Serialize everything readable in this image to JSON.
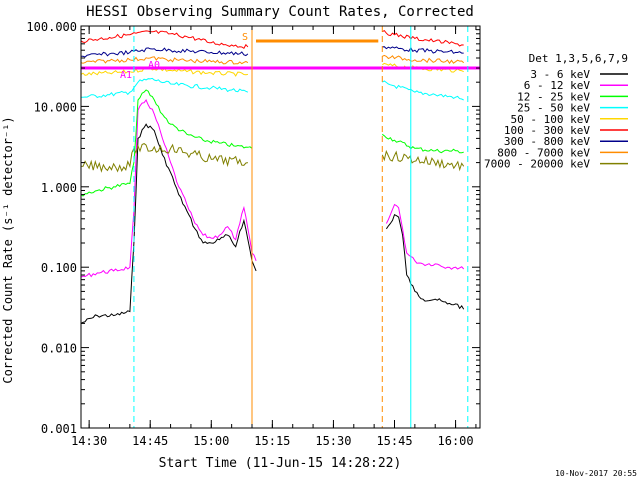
{
  "chart_data": {
    "type": "line",
    "title": "HESSI Observing Summary Count Rates, Corrected",
    "xlabel": "Start Time (11-Jun-15 14:28:22)",
    "ylabel": "Corrected Count Rate (s⁻¹ detector⁻¹)",
    "footer": "10-Nov-2017 20:55",
    "legend_title": "Det 1,3,5,6,7,9",
    "legend_position": "right",
    "y_scale": "log",
    "ylim": [
      0.001,
      100
    ],
    "xlim": [
      "14:28",
      "16:06"
    ],
    "x_ticks": [
      "14:30",
      "14:45",
      "15:00",
      "15:15",
      "15:30",
      "15:45",
      "16:00"
    ],
    "y_ticks": [
      "0.001",
      "0.010",
      "0.100",
      "1.000",
      "10.000",
      "100.000"
    ],
    "series": [
      {
        "name": "3 - 6 keV",
        "color": "#000000",
        "x": [
          "14:28",
          "14:32",
          "14:36",
          "14:40",
          "14:41",
          "14:42",
          "14:44",
          "14:46",
          "14:48",
          "14:50",
          "14:52",
          "14:54",
          "14:56",
          "14:58",
          "15:00",
          "15:02",
          "15:04",
          "15:06",
          "15:07",
          "15:08",
          "15:09",
          "15:10",
          "15:11",
          null,
          "15:43",
          "15:44",
          "15:45",
          "15:46",
          "15:47",
          "15:48",
          "15:50",
          "15:52",
          "15:55",
          "15:58",
          "16:00",
          "16:02"
        ],
        "y": [
          0.02,
          0.025,
          0.025,
          0.028,
          0.2,
          4,
          6,
          5,
          2.5,
          1.5,
          0.8,
          0.5,
          0.3,
          0.2,
          0.2,
          0.22,
          0.25,
          0.18,
          0.28,
          0.38,
          0.22,
          0.12,
          0.09,
          null,
          0.3,
          0.35,
          0.45,
          0.42,
          0.25,
          0.08,
          0.05,
          0.04,
          0.04,
          0.035,
          0.035,
          0.03
        ]
      },
      {
        "name": "6 - 12 keV",
        "color": "#ff00ff",
        "x": [
          "14:28",
          "14:32",
          "14:36",
          "14:40",
          "14:41",
          "14:42",
          "14:44",
          "14:46",
          "14:48",
          "14:50",
          "14:52",
          "14:54",
          "14:56",
          "14:58",
          "15:00",
          "15:02",
          "15:04",
          "15:06",
          "15:07",
          "15:08",
          "15:09",
          "15:10",
          "15:11",
          null,
          "15:43",
          "15:44",
          "15:45",
          "15:46",
          "15:47",
          "15:48",
          "15:50",
          "15:52",
          "15:55",
          "15:58",
          "16:00",
          "16:02"
        ],
        "y": [
          0.075,
          0.085,
          0.09,
          0.1,
          0.5,
          9,
          12,
          8,
          4,
          2,
          1,
          0.6,
          0.35,
          0.25,
          0.23,
          0.25,
          0.32,
          0.22,
          0.35,
          0.55,
          0.3,
          0.15,
          0.12,
          null,
          0.35,
          0.45,
          0.6,
          0.55,
          0.3,
          0.15,
          0.12,
          0.11,
          0.11,
          0.1,
          0.1,
          0.095
        ]
      },
      {
        "name": "12 - 25 keV",
        "color": "#00ff00",
        "x": [
          "14:28",
          "14:32",
          "14:36",
          "14:40",
          "14:41",
          "14:42",
          "14:44",
          "14:46",
          "14:48",
          "14:50",
          "14:54",
          "14:58",
          "15:02",
          "15:06",
          "15:09",
          "15:10",
          null,
          "15:42",
          "15:45",
          "15:50",
          "15:55",
          "16:00",
          "16:02"
        ],
        "y": [
          0.8,
          0.9,
          1,
          1.1,
          2,
          12,
          16,
          12,
          8,
          6,
          4.5,
          3.8,
          3.5,
          3.2,
          3.1,
          3,
          null,
          4.5,
          3.8,
          3,
          2.8,
          2.8,
          2.7
        ]
      },
      {
        "name": "25 - 50 keV",
        "color": "#00ffff",
        "x": [
          "14:28",
          "14:35",
          "14:40",
          "14:42",
          "14:45",
          "14:50",
          "15:00",
          "15:05",
          "15:09",
          null,
          "15:42",
          "15:45",
          "15:50",
          "15:55",
          "16:00",
          "16:02"
        ],
        "y": [
          13,
          14,
          15,
          20,
          22,
          19,
          17,
          16,
          15,
          null,
          20,
          18,
          15,
          14,
          13,
          12
        ]
      },
      {
        "name": "50 - 100 keV",
        "color": "#ffd700",
        "x": [
          "14:28",
          "14:35",
          "14:40",
          "14:45",
          "14:50",
          "15:00",
          "15:09",
          null,
          "15:42",
          "15:50",
          "16:00",
          "16:02"
        ],
        "y": [
          25,
          26,
          27,
          30,
          28,
          26,
          25,
          null,
          33,
          30,
          28,
          27
        ]
      },
      {
        "name": "100 - 300 keV",
        "color": "#ff0000",
        "x": [
          "14:28",
          "14:35",
          "14:40",
          "14:45",
          "14:50",
          "14:55",
          "15:00",
          "15:05",
          "15:09",
          null,
          "15:42",
          "15:45",
          "15:50",
          "15:55",
          "16:00",
          "16:02"
        ],
        "y": [
          65,
          72,
          78,
          85,
          80,
          72,
          62,
          58,
          55,
          null,
          85,
          78,
          70,
          65,
          60,
          58
        ]
      },
      {
        "name": "300 - 800 keV",
        "color": "#00008b",
        "x": [
          "14:28",
          "14:35",
          "14:40",
          "14:45",
          "14:50",
          "15:00",
          "15:09",
          null,
          "15:42",
          "15:50",
          "16:00",
          "16:02"
        ],
        "y": [
          42,
          45,
          47,
          52,
          50,
          47,
          45,
          null,
          55,
          50,
          47,
          46
        ]
      },
      {
        "name": "800 - 7000 keV",
        "color": "#ff8c00",
        "x": [
          "14:28",
          "14:35",
          "14:40",
          "14:45",
          "14:50",
          "15:00",
          "15:09",
          null,
          "15:42",
          "15:50",
          "16:00",
          "16:02"
        ],
        "y": [
          35,
          37,
          38,
          40,
          38,
          36,
          35,
          null,
          42,
          38,
          36,
          35
        ]
      },
      {
        "name": "7000 - 20000 keV",
        "color": "#808000",
        "x": [
          "14:28",
          "14:40",
          "14:41",
          "14:50",
          "15:00",
          "15:09",
          null,
          "15:42",
          "16:02"
        ],
        "y": [
          1.8,
          1.8,
          3,
          3,
          2.2,
          2,
          null,
          2.5,
          1.8
        ]
      }
    ],
    "annotations": [
      {
        "label": "A1",
        "color": "#ff00ff"
      },
      {
        "label": "A0",
        "color": "#ff00ff"
      },
      {
        "label": "S",
        "color": "#ff8c00"
      }
    ],
    "markers": {
      "attenuator_level": 30,
      "attenuator_color": "#ff00ff",
      "saa_level": 65,
      "saa_color": "#ff8c00",
      "night_lines": [
        "14:28",
        "15:49",
        "16:03"
      ],
      "night_color": "#00ffff",
      "saa_lines": [
        "15:10",
        "15:42"
      ],
      "saa_line_color": "#ff8c00"
    }
  }
}
